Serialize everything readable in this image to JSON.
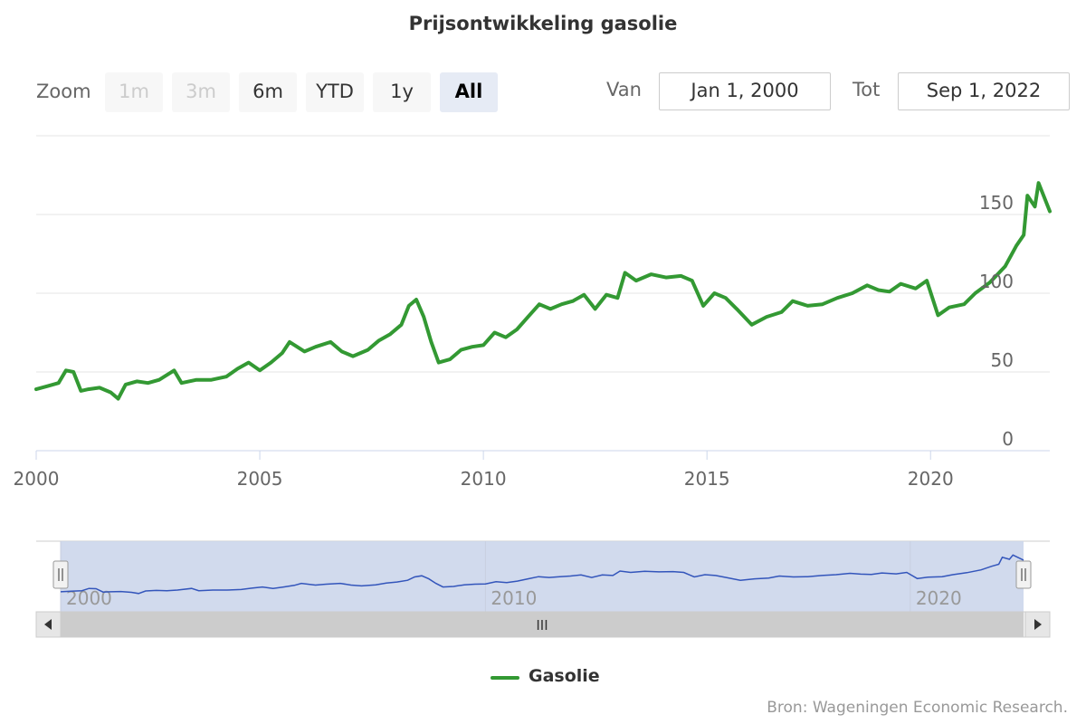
{
  "title": "Prijsontwikkeling gasolie",
  "zoom": {
    "label": "Zoom",
    "buttons": [
      {
        "label": "1m",
        "state": "disabled"
      },
      {
        "label": "3m",
        "state": "disabled"
      },
      {
        "label": "6m",
        "state": "normal"
      },
      {
        "label": "YTD",
        "state": "normal"
      },
      {
        "label": "1y",
        "state": "normal"
      },
      {
        "label": "All",
        "state": "active"
      }
    ]
  },
  "range": {
    "from_label": "Van",
    "from_value": "Jan 1, 2000",
    "to_label": "Tot",
    "to_value": "Sep 1, 2022"
  },
  "legend": {
    "label": "Gasolie",
    "color": "#339933"
  },
  "navigator": {
    "color": "#3355bb",
    "tick_labels": [
      "2000",
      "2010",
      "2020"
    ],
    "scroll_grip": "III"
  },
  "credits": "Bron: Wageningen Economic Research.",
  "chart_data": {
    "type": "line",
    "title": "Prijsontwikkeling gasolie",
    "xlabel": "",
    "ylabel": "",
    "x_ticks": [
      "2000",
      "2005",
      "2010",
      "2015",
      "2020"
    ],
    "y_ticks": [
      "0",
      "50",
      "100",
      "150"
    ],
    "xlim": [
      "2000-01",
      "2022-09"
    ],
    "ylim": [
      0,
      200
    ],
    "grid": true,
    "legend_position": "bottom-center",
    "series": [
      {
        "name": "Gasolie",
        "color": "#339933",
        "points": [
          [
            "2000-01",
            39
          ],
          [
            "2000-04",
            41
          ],
          [
            "2000-07",
            43
          ],
          [
            "2000-09",
            51
          ],
          [
            "2000-11",
            50
          ],
          [
            "2001-01",
            38
          ],
          [
            "2001-03",
            39
          ],
          [
            "2001-06",
            40
          ],
          [
            "2001-09",
            37
          ],
          [
            "2001-11",
            33
          ],
          [
            "2002-01",
            42
          ],
          [
            "2002-04",
            44
          ],
          [
            "2002-07",
            43
          ],
          [
            "2002-10",
            45
          ],
          [
            "2003-02",
            51
          ],
          [
            "2003-04",
            43
          ],
          [
            "2003-08",
            45
          ],
          [
            "2003-12",
            45
          ],
          [
            "2004-04",
            47
          ],
          [
            "2004-07",
            52
          ],
          [
            "2004-10",
            56
          ],
          [
            "2005-01",
            51
          ],
          [
            "2005-04",
            56
          ],
          [
            "2005-07",
            62
          ],
          [
            "2005-09",
            69
          ],
          [
            "2006-01",
            63
          ],
          [
            "2006-04",
            66
          ],
          [
            "2006-08",
            69
          ],
          [
            "2006-11",
            63
          ],
          [
            "2007-02",
            60
          ],
          [
            "2007-06",
            64
          ],
          [
            "2007-09",
            70
          ],
          [
            "2007-12",
            74
          ],
          [
            "2008-03",
            80
          ],
          [
            "2008-05",
            92
          ],
          [
            "2008-07",
            96
          ],
          [
            "2008-09",
            85
          ],
          [
            "2008-11",
            69
          ],
          [
            "2009-01",
            56
          ],
          [
            "2009-04",
            58
          ],
          [
            "2009-07",
            64
          ],
          [
            "2009-10",
            66
          ],
          [
            "2010-01",
            67
          ],
          [
            "2010-04",
            75
          ],
          [
            "2010-07",
            72
          ],
          [
            "2010-10",
            77
          ],
          [
            "2011-01",
            85
          ],
          [
            "2011-04",
            93
          ],
          [
            "2011-07",
            90
          ],
          [
            "2011-10",
            93
          ],
          [
            "2012-01",
            95
          ],
          [
            "2012-04",
            99
          ],
          [
            "2012-07",
            90
          ],
          [
            "2012-10",
            99
          ],
          [
            "2013-01",
            97
          ],
          [
            "2013-03",
            113
          ],
          [
            "2013-06",
            108
          ],
          [
            "2013-10",
            112
          ],
          [
            "2014-02",
            110
          ],
          [
            "2014-06",
            111
          ],
          [
            "2014-09",
            108
          ],
          [
            "2014-12",
            92
          ],
          [
            "2015-03",
            100
          ],
          [
            "2015-06",
            97
          ],
          [
            "2015-09",
            90
          ],
          [
            "2016-01",
            80
          ],
          [
            "2016-05",
            85
          ],
          [
            "2016-09",
            88
          ],
          [
            "2016-12",
            95
          ],
          [
            "2017-04",
            92
          ],
          [
            "2017-08",
            93
          ],
          [
            "2017-12",
            97
          ],
          [
            "2018-04",
            100
          ],
          [
            "2018-08",
            105
          ],
          [
            "2018-11",
            102
          ],
          [
            "2019-02",
            101
          ],
          [
            "2019-05",
            106
          ],
          [
            "2019-09",
            103
          ],
          [
            "2019-12",
            108
          ],
          [
            "2020-03",
            86
          ],
          [
            "2020-06",
            91
          ],
          [
            "2020-10",
            93
          ],
          [
            "2021-01",
            100
          ],
          [
            "2021-05",
            107
          ],
          [
            "2021-09",
            117
          ],
          [
            "2021-12",
            130
          ],
          [
            "2022-02",
            137
          ],
          [
            "2022-03",
            162
          ],
          [
            "2022-05",
            155
          ],
          [
            "2022-06",
            170
          ],
          [
            "2022-09",
            152
          ]
        ]
      }
    ]
  }
}
